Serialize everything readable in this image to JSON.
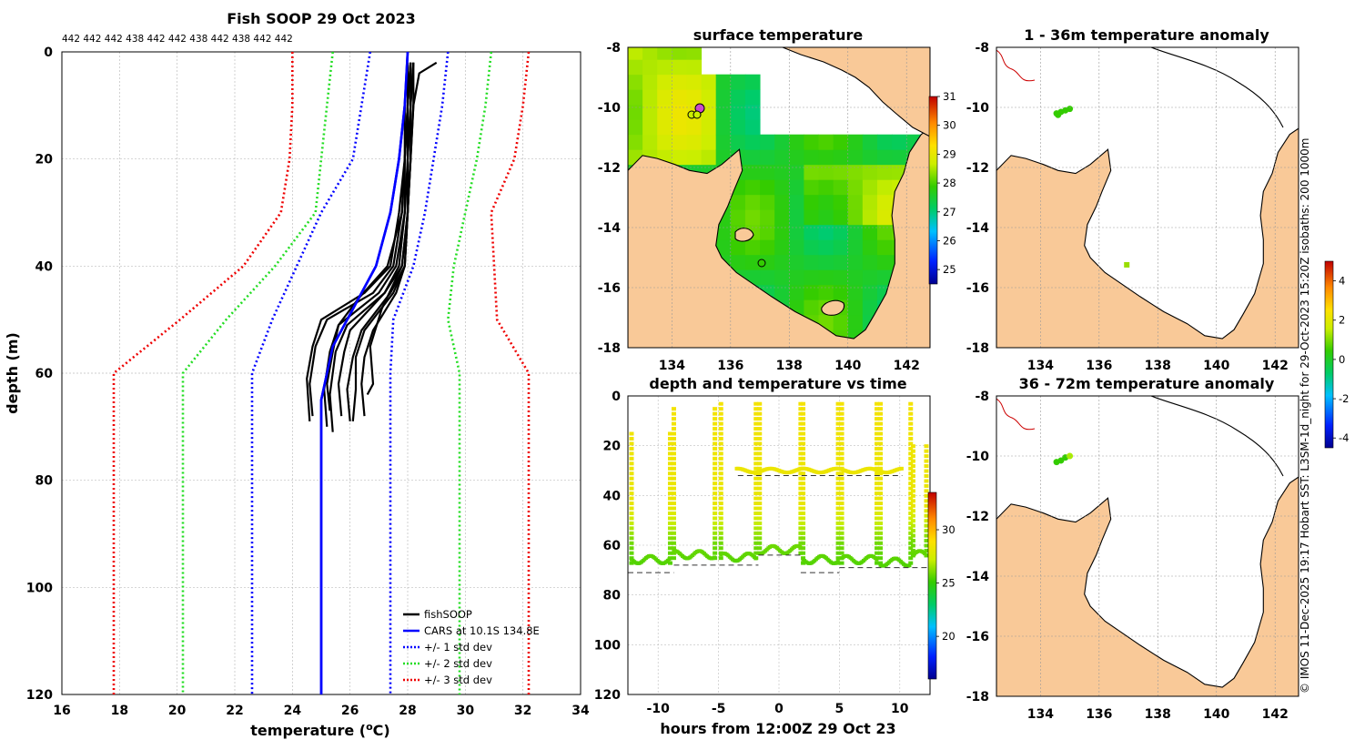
{
  "chart_data": [
    {
      "id": "profile",
      "type": "line",
      "title": "Fish SOOP 29 Oct 2023",
      "top_labels": "442 442 442 438 442 442 438 442 438 442 442",
      "xlabel": "temperature (°C)",
      "ylabel": "depth (m)",
      "xlim": [
        16,
        34
      ],
      "ylim": [
        120,
        0
      ],
      "xticks": [
        16,
        18,
        20,
        22,
        24,
        26,
        28,
        30,
        32,
        34
      ],
      "yticks": [
        0,
        20,
        40,
        60,
        80,
        100,
        120
      ],
      "grid": true,
      "legend": [
        "fishSOOP",
        "CARS at 10.1S 134.8E",
        "+/- 1 std dev",
        "+/- 2 std dev",
        "+/- 3 std dev"
      ],
      "legend_position": "bottom-right",
      "series": [
        {
          "name": "CARS at 10.1S 134.8E",
          "color": "#0000ff",
          "style": "solid",
          "temp": [
            28.0,
            27.9,
            27.7,
            27.4,
            26.9,
            25.9,
            25.4,
            25.0,
            25.0,
            25.0
          ],
          "depth": [
            0,
            10,
            20,
            30,
            40,
            50,
            55,
            65,
            80,
            120
          ]
        },
        {
          "name": "CARS -1 std",
          "color": "#0000ff",
          "style": "dotted",
          "temp": [
            26.7,
            26.4,
            26.1,
            25.0,
            23.3,
            22.6,
            22.6
          ],
          "depth": [
            0,
            10,
            20,
            30,
            50,
            60,
            120
          ]
        },
        {
          "name": "CARS +1 std",
          "color": "#0000ff",
          "style": "dotted",
          "temp": [
            29.4,
            29.2,
            28.9,
            28.6,
            28.2,
            27.5,
            27.4,
            27.4
          ],
          "depth": [
            0,
            10,
            20,
            30,
            40,
            50,
            60,
            120
          ]
        },
        {
          "name": "CARS -2 std",
          "color": "#22dd22",
          "style": "dotted",
          "temp": [
            25.4,
            25.2,
            25.0,
            24.8,
            23.4,
            21.7,
            20.2,
            20.2
          ],
          "depth": [
            0,
            10,
            20,
            30,
            40,
            50,
            60,
            120
          ]
        },
        {
          "name": "CARS +2 std",
          "color": "#22dd22",
          "style": "dotted",
          "temp": [
            30.9,
            30.7,
            30.4,
            30.0,
            29.6,
            29.4,
            29.8,
            29.8
          ],
          "depth": [
            0,
            10,
            20,
            30,
            40,
            50,
            60,
            120
          ]
        },
        {
          "name": "CARS -3 std",
          "color": "#ee0000",
          "style": "dotted",
          "temp": [
            24.0,
            24.0,
            23.9,
            23.6,
            22.3,
            20.1,
            17.8,
            17.8
          ],
          "depth": [
            0,
            10,
            20,
            30,
            40,
            50,
            60,
            120
          ]
        },
        {
          "name": "CARS +3 std",
          "color": "#ee0000",
          "style": "dotted",
          "temp": [
            32.2,
            32.0,
            31.7,
            30.9,
            31.0,
            31.1,
            32.2,
            32.2
          ],
          "depth": [
            0,
            10,
            20,
            30,
            40,
            50,
            60,
            120
          ]
        }
      ],
      "fish_profiles": [
        {
          "temp": [
            28.1,
            28.1,
            28.0,
            28.0,
            27.8,
            27.2,
            26.0,
            25.8,
            25.6,
            25.7
          ],
          "depth": [
            2,
            10,
            20,
            30,
            40,
            45,
            52,
            56,
            62,
            68
          ]
        },
        {
          "temp": [
            28.2,
            28.1,
            28.0,
            28.0,
            27.9,
            27.5,
            26.5,
            26.2,
            26.2,
            26.1
          ],
          "depth": [
            2,
            10,
            20,
            30,
            40,
            45,
            52,
            57,
            63,
            69
          ]
        },
        {
          "temp": [
            28.0,
            27.9,
            27.9,
            27.8,
            27.5,
            26.8,
            25.2,
            24.8,
            24.6,
            24.7
          ],
          "depth": [
            2,
            10,
            20,
            30,
            40,
            45,
            50,
            55,
            62,
            68
          ]
        },
        {
          "temp": [
            28.1,
            28.0,
            27.9,
            27.9,
            27.6,
            27.0,
            25.6,
            25.3,
            25.1,
            25.2
          ],
          "depth": [
            2,
            10,
            20,
            30,
            40,
            45,
            51,
            56,
            63,
            70
          ]
        },
        {
          "temp": [
            28.2,
            28.2,
            28.1,
            28.0,
            27.9,
            27.6,
            26.8,
            26.5,
            26.4,
            26.5
          ],
          "depth": [
            2,
            10,
            20,
            30,
            40,
            45,
            52,
            57,
            62,
            68
          ]
        },
        {
          "temp": [
            28.1,
            28.0,
            28.0,
            27.9,
            27.7,
            27.2,
            25.9,
            25.5,
            25.3,
            25.4
          ],
          "depth": [
            2,
            10,
            20,
            30,
            40,
            45,
            51,
            56,
            64,
            71
          ]
        },
        {
          "temp": [
            28.0,
            28.0,
            27.9,
            27.7,
            27.4,
            26.5,
            25.0,
            24.7,
            24.5,
            24.6
          ],
          "depth": [
            2,
            10,
            20,
            30,
            40,
            45,
            50,
            55,
            61,
            69
          ]
        },
        {
          "temp": [
            28.2,
            28.1,
            28.1,
            28.0,
            27.9,
            27.4,
            26.4,
            26.1,
            25.9,
            26.0
          ],
          "depth": [
            2,
            10,
            20,
            30,
            40,
            45,
            52,
            57,
            63,
            69
          ]
        },
        {
          "temp": [
            29.0,
            28.4,
            28.2,
            28.1,
            28.0,
            27.8,
            27.1,
            26.7,
            26.8,
            26.6
          ],
          "depth": [
            2,
            4,
            10,
            20,
            30,
            40,
            48,
            55,
            62,
            64
          ]
        },
        {
          "temp": [
            28.1,
            28.0,
            27.9,
            27.8,
            27.3,
            26.3,
            25.6,
            25.4,
            25.2,
            25.3
          ],
          "depth": [
            2,
            10,
            20,
            30,
            40,
            46,
            51,
            56,
            62,
            67
          ]
        }
      ]
    },
    {
      "id": "sst",
      "type": "heatmap",
      "title": "surface temperature",
      "xlim": [
        132.5,
        142.8
      ],
      "ylim": [
        -18,
        -8
      ],
      "xticks": [
        134,
        136,
        138,
        140,
        142
      ],
      "yticks": [
        -8,
        -10,
        -12,
        -14,
        -16,
        -18
      ],
      "colorbar": {
        "min": 24.5,
        "max": 31,
        "ticks": [
          25,
          26,
          27,
          28,
          29,
          30,
          31
        ]
      }
    },
    {
      "id": "depth_time",
      "type": "scatter",
      "title": "depth and temperature vs time",
      "xlabel": "hours from 12:00Z 29 Oct 23",
      "xlim": [
        -12.5,
        12.5
      ],
      "ylim": [
        120,
        0
      ],
      "xticks": [
        -10,
        -5,
        0,
        5,
        10
      ],
      "yticks": [
        0,
        20,
        40,
        60,
        80,
        100,
        120
      ],
      "colorbar": {
        "min": 16,
        "max": 33.5,
        "ticks": [
          20,
          25,
          30
        ]
      },
      "casts": [
        {
          "t0": -12.2,
          "t1": -9.0,
          "top": 15,
          "bottom": 67
        },
        {
          "t0": -8.7,
          "t1": -5.3,
          "top": 5,
          "bottom": 65
        },
        {
          "t0": -4.8,
          "t1": -1.9,
          "top": 3,
          "bottom": 66
        },
        {
          "t0": -1.6,
          "t1": 1.8,
          "top": 3,
          "bottom": 63
        },
        {
          "t0": 2.0,
          "t1": 4.9,
          "top": 3,
          "bottom": 67
        },
        {
          "t0": 5.2,
          "t1": 8.1,
          "top": 3,
          "bottom": 67
        },
        {
          "t0": 8.4,
          "t1": 10.9,
          "top": 3,
          "bottom": 68
        },
        {
          "t0": 11.1,
          "t1": 12.2,
          "top": 20,
          "bottom": 65
        }
      ],
      "shallow_casts": [
        {
          "t0": -3.5,
          "t1": 1.8,
          "depth": 31
        },
        {
          "t0": 2.0,
          "t1": 10.2,
          "depth": 31
        }
      ],
      "bottom_lines": [
        {
          "t0": -12.5,
          "t1": -8.7,
          "depth": 71
        },
        {
          "t0": -8.7,
          "t1": -1.7,
          "depth": 68
        },
        {
          "t0": -1.7,
          "t1": 1.8,
          "depth": 64
        },
        {
          "t0": 1.8,
          "t1": 5.0,
          "depth": 71
        },
        {
          "t0": 5.0,
          "t1": 12.5,
          "depth": 69
        },
        {
          "t0": -3.4,
          "t1": 10.2,
          "depth": 32
        }
      ]
    },
    {
      "id": "anom_shallow",
      "type": "heatmap",
      "title": "1 - 36m temperature anomaly",
      "xlim": [
        132.5,
        142.8
      ],
      "ylim": [
        -18,
        -8
      ],
      "xticks": [
        134,
        136,
        138,
        140,
        142
      ],
      "yticks": [
        -8,
        -10,
        -12,
        -14,
        -16,
        -18
      ]
    },
    {
      "id": "anom_deep",
      "type": "heatmap",
      "title": "36 - 72m temperature anomaly",
      "xlim": [
        132.5,
        142.8
      ],
      "ylim": [
        -18,
        -8
      ],
      "xticks": [
        134,
        136,
        138,
        140,
        142
      ],
      "yticks": [
        -8,
        -10,
        -12,
        -14,
        -16,
        -18
      ],
      "colorbar": {
        "min": -4.5,
        "max": 5,
        "ticks": [
          4,
          2,
          0,
          -2,
          -4
        ]
      }
    }
  ],
  "credit": "© IMOS 11-Dec-2025 19:17 Hobart SST: L3SM-1d_night for 29-Oct-2023 15:20Z isobaths: 200  1000m",
  "colors": {
    "land": "#f9c998",
    "ocean_mask": "#ffffff",
    "fish": "#000000"
  }
}
